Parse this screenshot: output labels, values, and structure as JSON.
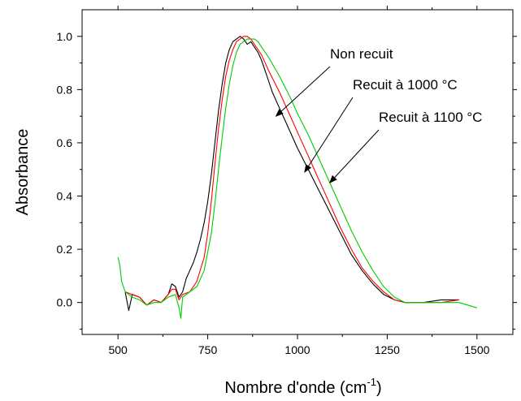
{
  "chart_data": {
    "type": "line",
    "title": "",
    "xlabel": {
      "main": "Nombre d'onde (cm",
      "superscript": "-1",
      "close": ")"
    },
    "ylabel": "Absorbance",
    "xlim": [
      400,
      1600
    ],
    "ylim": [
      -0.12,
      1.1
    ],
    "x_ticks": [
      500,
      750,
      1000,
      1250,
      1500
    ],
    "x_tick_labels": [
      "500",
      "750",
      "1000",
      "1250",
      "1500"
    ],
    "y_ticks": [
      0.0,
      0.2,
      0.4,
      0.6,
      0.8,
      1.0
    ],
    "y_tick_labels": [
      "0.0",
      "0.2",
      "0.4",
      "0.6",
      "0.8",
      "1.0"
    ],
    "grid": false,
    "legend": "none",
    "series": [
      {
        "name": "Non recuit",
        "color": "#000000",
        "x": [
          520,
          530,
          540,
          560,
          580,
          600,
          620,
          640,
          650,
          660,
          670,
          680,
          690,
          700,
          710,
          720,
          730,
          740,
          750,
          760,
          770,
          780,
          790,
          800,
          810,
          820,
          830,
          840,
          850,
          860,
          870,
          880,
          890,
          900,
          910,
          920,
          930,
          950,
          970,
          1000,
          1030,
          1060,
          1090,
          1120,
          1150,
          1180,
          1210,
          1240,
          1270,
          1300,
          1350,
          1400,
          1450
        ],
        "y": [
          0.04,
          -0.03,
          0.03,
          0.02,
          -0.01,
          0.01,
          0.0,
          0.03,
          0.07,
          0.06,
          0.02,
          0.04,
          0.09,
          0.12,
          0.15,
          0.19,
          0.24,
          0.3,
          0.38,
          0.48,
          0.6,
          0.72,
          0.82,
          0.9,
          0.95,
          0.98,
          0.99,
          1.0,
          0.99,
          0.97,
          0.98,
          0.96,
          0.94,
          0.91,
          0.87,
          0.83,
          0.79,
          0.73,
          0.67,
          0.58,
          0.5,
          0.42,
          0.34,
          0.26,
          0.18,
          0.12,
          0.07,
          0.03,
          0.01,
          0.0,
          0.0,
          0.01,
          0.01
        ]
      },
      {
        "name": "Recuit à 1000 °C",
        "color": "#ff0000",
        "x": [
          520,
          540,
          560,
          580,
          600,
          620,
          640,
          650,
          660,
          670,
          680,
          700,
          720,
          740,
          750,
          760,
          770,
          780,
          790,
          800,
          810,
          820,
          830,
          840,
          850,
          860,
          870,
          880,
          900,
          920,
          950,
          980,
          1000,
          1030,
          1060,
          1090,
          1120,
          1150,
          1180,
          1210,
          1240,
          1270,
          1300,
          1350,
          1400,
          1450
        ],
        "y": [
          0.04,
          0.03,
          0.02,
          -0.01,
          0.01,
          0.0,
          0.03,
          0.05,
          0.05,
          0.01,
          0.03,
          0.04,
          0.08,
          0.17,
          0.26,
          0.38,
          0.52,
          0.65,
          0.76,
          0.85,
          0.91,
          0.95,
          0.98,
          0.99,
          1.0,
          1.0,
          0.99,
          0.97,
          0.93,
          0.87,
          0.79,
          0.7,
          0.64,
          0.55,
          0.46,
          0.37,
          0.28,
          0.2,
          0.13,
          0.08,
          0.04,
          0.01,
          0.0,
          0.0,
          0.0,
          0.01
        ]
      },
      {
        "name": "Recuit à 1100 °C",
        "color": "#00cc00",
        "x": [
          500,
          505,
          510,
          520,
          540,
          560,
          580,
          600,
          620,
          640,
          660,
          670,
          675,
          680,
          700,
          720,
          740,
          760,
          770,
          780,
          790,
          800,
          810,
          820,
          830,
          840,
          850,
          860,
          870,
          880,
          890,
          900,
          920,
          950,
          980,
          1000,
          1030,
          1060,
          1090,
          1120,
          1150,
          1180,
          1210,
          1240,
          1270,
          1300,
          1350,
          1400,
          1450,
          1500
        ],
        "y": [
          0.17,
          0.14,
          0.08,
          0.04,
          0.02,
          0.01,
          -0.01,
          0.0,
          0.0,
          0.02,
          0.03,
          -0.02,
          -0.06,
          0.02,
          0.04,
          0.06,
          0.12,
          0.26,
          0.37,
          0.5,
          0.62,
          0.73,
          0.82,
          0.89,
          0.94,
          0.97,
          0.98,
          0.99,
          0.99,
          0.99,
          0.98,
          0.96,
          0.92,
          0.85,
          0.77,
          0.71,
          0.63,
          0.54,
          0.45,
          0.36,
          0.27,
          0.19,
          0.12,
          0.06,
          0.02,
          0.0,
          0.0,
          0.0,
          0.0,
          -0.02
        ]
      }
    ],
    "annotations": [
      {
        "text": "Non recuit",
        "series": "Non recuit",
        "arrow_to": [
          940,
          0.7
        ]
      },
      {
        "text": "Recuit à 1000 °C",
        "series": "Recuit à 1000 °C",
        "arrow_to": [
          1020,
          0.49
        ]
      },
      {
        "text": "Recuit à 1100 °C",
        "series": "Recuit à 1100 °C",
        "arrow_to": [
          1090,
          0.45
        ]
      }
    ]
  }
}
